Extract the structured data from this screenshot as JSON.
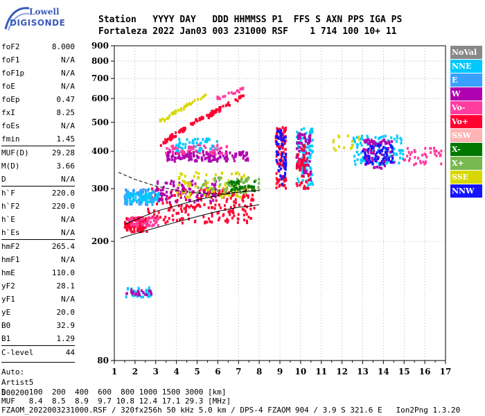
{
  "logo": {
    "line1": "Lowell",
    "line2": "DIGISONDE"
  },
  "header": {
    "line1": "Station   YYYY DAY   DDD HHMMSS P1  FFS S AXN PPS IGA PS",
    "line2": "Fortaleza 2022 Jan03 003 231000 RSF    1 714 100 10+ 11"
  },
  "params": [
    {
      "label": "foF2",
      "value": "8.000"
    },
    {
      "label": "foF1",
      "value": "N/A"
    },
    {
      "label": "foF1p",
      "value": "N/A"
    },
    {
      "label": "foE",
      "value": "N/A"
    },
    {
      "label": "foEp",
      "value": "0.47"
    },
    {
      "label": "fxI",
      "value": "8.25"
    },
    {
      "label": "foEs",
      "value": "N/A"
    },
    {
      "label": "fmin",
      "value": "1.45"
    },
    {
      "label": "MUF(D)",
      "value": "29.28",
      "sep": true
    },
    {
      "label": "M(D)",
      "value": "3.66"
    },
    {
      "label": "D",
      "value": "N/A"
    },
    {
      "label": "h`F",
      "value": "220.0",
      "sep": true
    },
    {
      "label": "h`F2",
      "value": "220.0"
    },
    {
      "label": "h`E",
      "value": "N/A"
    },
    {
      "label": "h`Es",
      "value": "N/A"
    },
    {
      "label": "hmF2",
      "value": "265.4",
      "sep": true
    },
    {
      "label": "hmF1",
      "value": "N/A"
    },
    {
      "label": "hmE",
      "value": "110.0"
    },
    {
      "label": "yF2",
      "value": "28.1"
    },
    {
      "label": "yF1",
      "value": "N/A"
    },
    {
      "label": "yE",
      "value": "20.0"
    },
    {
      "label": "B0",
      "value": "32.9"
    },
    {
      "label": "B1",
      "value": "1.29"
    },
    {
      "label": "C-level",
      "value": "44",
      "sep": true
    }
  ],
  "notes": [
    "Auto:",
    "Artist5",
    "500200"
  ],
  "legend": [
    {
      "label": "NoVal",
      "color": "#888888"
    },
    {
      "label": "NNE",
      "color": "#00c8ff"
    },
    {
      "label": "E",
      "color": "#3aa0ff"
    },
    {
      "label": "W",
      "color": "#b000b0"
    },
    {
      "label": "Vo-",
      "color": "#ff3ca0"
    },
    {
      "label": "Vo+",
      "color": "#ff0030"
    },
    {
      "label": "SSW",
      "color": "#ffb4b4"
    },
    {
      "label": "X-",
      "color": "#007800"
    },
    {
      "label": "X+",
      "color": "#78b850"
    },
    {
      "label": "SSE",
      "color": "#d8d800"
    },
    {
      "label": "NNW",
      "color": "#1414ff"
    }
  ],
  "chart_data": {
    "type": "scatter",
    "xlim": [
      1,
      17
    ],
    "ylim": [
      80,
      900
    ],
    "yscale": "log",
    "x_ticks": [
      "1",
      "2",
      "3",
      "4",
      "5",
      "6",
      "7",
      "8",
      "9",
      "10",
      "11",
      "12",
      "13",
      "14",
      "15",
      "16",
      "17"
    ],
    "y_ticks": [
      {
        "value": 80,
        "label": "80"
      },
      {
        "value": 200,
        "label": "200"
      },
      {
        "value": 300,
        "label": "300"
      },
      {
        "value": 400,
        "label": "400"
      },
      {
        "value": 500,
        "label": "500"
      },
      {
        "value": 600,
        "label": "600"
      },
      {
        "value": 700,
        "label": "700"
      },
      {
        "value": 800,
        "label": "800"
      },
      {
        "value": 900,
        "label": "900"
      }
    ],
    "grid": true,
    "profile_solid": [
      [
        1.3,
        205
      ],
      [
        2,
        212
      ],
      [
        3,
        222
      ],
      [
        4,
        232
      ],
      [
        5,
        242
      ],
      [
        6,
        252
      ],
      [
        7,
        260
      ],
      [
        7.5,
        262
      ],
      [
        8,
        265
      ]
    ],
    "profile_upper": [
      [
        1.5,
        228
      ],
      [
        3,
        252
      ],
      [
        5,
        275
      ],
      [
        6,
        285
      ],
      [
        7,
        292
      ],
      [
        8,
        296
      ]
    ],
    "profile_dashed": [
      [
        1.2,
        340
      ],
      [
        2,
        322
      ],
      [
        3,
        306
      ],
      [
        4,
        296
      ],
      [
        5,
        290
      ],
      [
        6,
        288
      ],
      [
        7,
        292
      ],
      [
        7.5,
        296
      ]
    ],
    "clusters": [
      {
        "x": [
          1.5,
          2.6
        ],
        "y": [
          215,
          240
        ],
        "color": "#ff0030",
        "n": 120
      },
      {
        "x": [
          2.6,
          7.8
        ],
        "y": [
          230,
          300
        ],
        "color": "#ff0030",
        "n": 220
      },
      {
        "x": [
          1.5,
          3
        ],
        "y": [
          265,
          300
        ],
        "color": "#3aa0ff",
        "n": 90
      },
      {
        "x": [
          1.6,
          3.2
        ],
        "y": [
          270,
          290
        ],
        "color": "#00c8ff",
        "n": 70
      },
      {
        "x": [
          3,
          6
        ],
        "y": [
          270,
          320
        ],
        "color": "#b000b0",
        "n": 90
      },
      {
        "x": [
          4,
          7.5
        ],
        "y": [
          280,
          340
        ],
        "color": "#d8d800",
        "n": 90
      },
      {
        "x": [
          5,
          8
        ],
        "y": [
          290,
          330
        ],
        "color": "#78b850",
        "n": 60
      },
      {
        "x": [
          6.5,
          7.8
        ],
        "y": [
          295,
          320
        ],
        "color": "#007800",
        "n": 40
      },
      {
        "x": [
          1.6,
          3.2
        ],
        "y": [
          225,
          240
        ],
        "color": "#ff3ca0",
        "n": 50
      },
      {
        "x": [
          3.5,
          7.5
        ],
        "y": [
          370,
          400
        ],
        "color": "#b000b0",
        "n": 150
      },
      {
        "x": [
          3.5,
          6.5
        ],
        "y": [
          390,
          420
        ],
        "color": "#ff3ca0",
        "n": 60
      },
      {
        "x": [
          4,
          6
        ],
        "y": [
          400,
          440
        ],
        "color": "#00c8ff",
        "n": 40
      },
      {
        "x": [
          8.8,
          9.3
        ],
        "y": [
          300,
          480
        ],
        "color": "#ff0030",
        "n": 100
      },
      {
        "x": [
          8.8,
          9.3
        ],
        "y": [
          310,
          470
        ],
        "color": "#1414ff",
        "n": 60
      },
      {
        "x": [
          9.8,
          10.6
        ],
        "y": [
          300,
          480
        ],
        "color": "#00c8ff",
        "n": 90
      },
      {
        "x": [
          9.8,
          10.5
        ],
        "y": [
          320,
          460
        ],
        "color": "#b000b0",
        "n": 60
      },
      {
        "x": [
          9.8,
          10.4
        ],
        "y": [
          300,
          420
        ],
        "color": "#ff0030",
        "n": 50
      },
      {
        "x": [
          12.5,
          15
        ],
        "y": [
          360,
          450
        ],
        "color": "#00c8ff",
        "n": 110
      },
      {
        "x": [
          13,
          14.5
        ],
        "y": [
          350,
          440
        ],
        "color": "#b000b0",
        "n": 90
      },
      {
        "x": [
          13,
          14.5
        ],
        "y": [
          360,
          420
        ],
        "color": "#1414ff",
        "n": 60
      },
      {
        "x": [
          15,
          16.8
        ],
        "y": [
          360,
          410
        ],
        "color": "#ff3ca0",
        "n": 40
      },
      {
        "x": [
          11.5,
          13
        ],
        "y": [
          400,
          450
        ],
        "color": "#d8d800",
        "n": 15
      },
      {
        "x": [
          1.5,
          2.8
        ],
        "y": [
          130,
          140
        ],
        "color": "#00c8ff",
        "n": 30
      },
      {
        "x": [
          1.5,
          2.8
        ],
        "y": [
          132,
          138
        ],
        "color": "#b000b0",
        "n": 20
      }
    ],
    "traces": [
      {
        "x0": 3.2,
        "y0": 420,
        "x1": 6.2,
        "y1": 560,
        "color": "#ff0030",
        "n": 70
      },
      {
        "x0": 5.5,
        "y0": 520,
        "x1": 7.2,
        "y1": 610,
        "color": "#ff0030",
        "n": 35
      },
      {
        "x0": 3.2,
        "y0": 500,
        "x1": 5.5,
        "y1": 620,
        "color": "#d8d800",
        "n": 40
      },
      {
        "x0": 6,
        "y0": 600,
        "x1": 7.4,
        "y1": 650,
        "color": "#ff3ca0",
        "n": 20
      }
    ]
  },
  "footer": {
    "line1": "D     100  200  400  600  800 1000 1500 3000 [km]",
    "line2": "MUF   8.4  8.5  8.9  9.7 10.8 12.4 17.1 29.3 [MHz]",
    "line3": "FZAOM_2022003231000.RSF / 320fx256h 50 kHz 5.0 km / DPS-4 FZAOM 904 / 3.9 S 321.6 E   Ion2Png 1.3.20"
  }
}
